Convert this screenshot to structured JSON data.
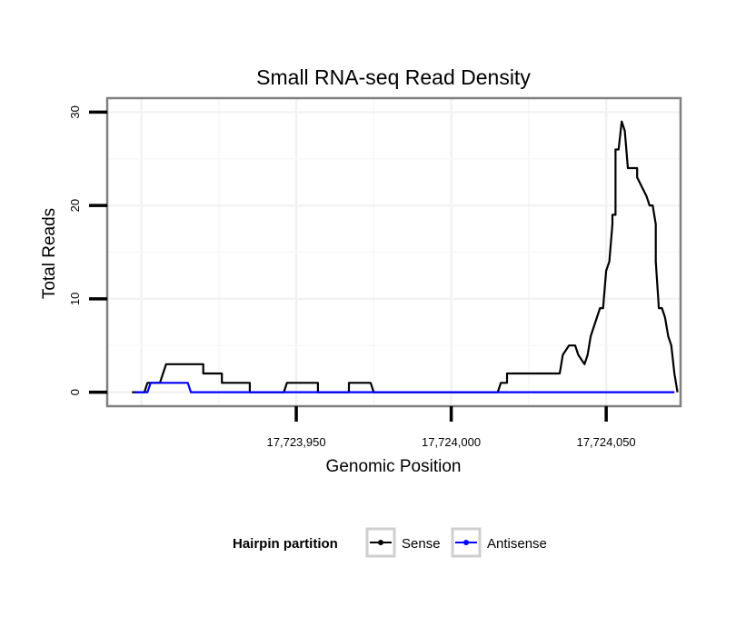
{
  "chart_data": {
    "type": "line",
    "title": "Small RNA-seq Read Density",
    "xlabel": "Genomic Position",
    "ylabel": "Total Reads",
    "xlim": [
      17723889,
      17724074
    ],
    "ylim": [
      -1.5,
      31.5
    ],
    "x_ticks": [
      17723950,
      17724000,
      17724050
    ],
    "x_tick_labels": [
      "17,723,950",
      "17,724,000",
      "17,724,050"
    ],
    "y_ticks": [
      0,
      10,
      20,
      30
    ],
    "y_tick_labels": [
      "0",
      "10",
      "20",
      "30"
    ],
    "grid": true,
    "legend": {
      "title": "Hairpin partition",
      "position": "bottom",
      "entries": [
        {
          "label": "Sense",
          "color": "#000000"
        },
        {
          "label": "Antisense",
          "color": "#0000ff"
        }
      ]
    },
    "series": [
      {
        "name": "Sense",
        "color": "#000000",
        "x": [
          17723897,
          17723901,
          17723902,
          17723906,
          17723908,
          17723920,
          17723920,
          17723926,
          17723926,
          17723935,
          17723935,
          17723946,
          17723947,
          17723957,
          17723957,
          17723967,
          17723967,
          17723974,
          17723975,
          17724015,
          17724016,
          17724018,
          17724018,
          17724035,
          17724036,
          17724038,
          17724040,
          17724041,
          17724043,
          17724044,
          17724045,
          17724047,
          17724047,
          17724048,
          17724049,
          17724050,
          17724051,
          17724052,
          17724052,
          17724053,
          17724053,
          17724054,
          17724055,
          17724055,
          17724056,
          17724057,
          17724058,
          17724060,
          17724060,
          17724063,
          17724064,
          17724065,
          17724066,
          17724066,
          17724067,
          17724068,
          17724069,
          17724070,
          17724070,
          17724071,
          17724072,
          17724073,
          17724073
        ],
        "y": [
          0,
          0,
          1,
          1,
          3,
          3,
          2,
          2,
          1,
          1,
          0,
          0,
          1,
          1,
          0,
          0,
          1,
          1,
          0,
          0,
          1,
          1,
          2,
          2,
          4,
          5,
          5,
          4,
          3,
          4,
          6,
          8,
          8,
          9,
          9,
          13,
          14,
          18,
          19,
          19,
          26,
          26,
          29,
          29,
          28,
          24,
          24,
          24,
          23,
          21,
          20,
          20,
          18,
          14,
          9,
          9,
          8,
          6,
          6,
          5,
          2,
          0,
          0
        ]
      },
      {
        "name": "Antisense",
        "color": "#0000ff",
        "x": [
          17723898,
          17723902,
          17723903,
          17723915,
          17723916,
          17724072
        ],
        "y": [
          0,
          0,
          1,
          1,
          0,
          0
        ]
      }
    ]
  }
}
